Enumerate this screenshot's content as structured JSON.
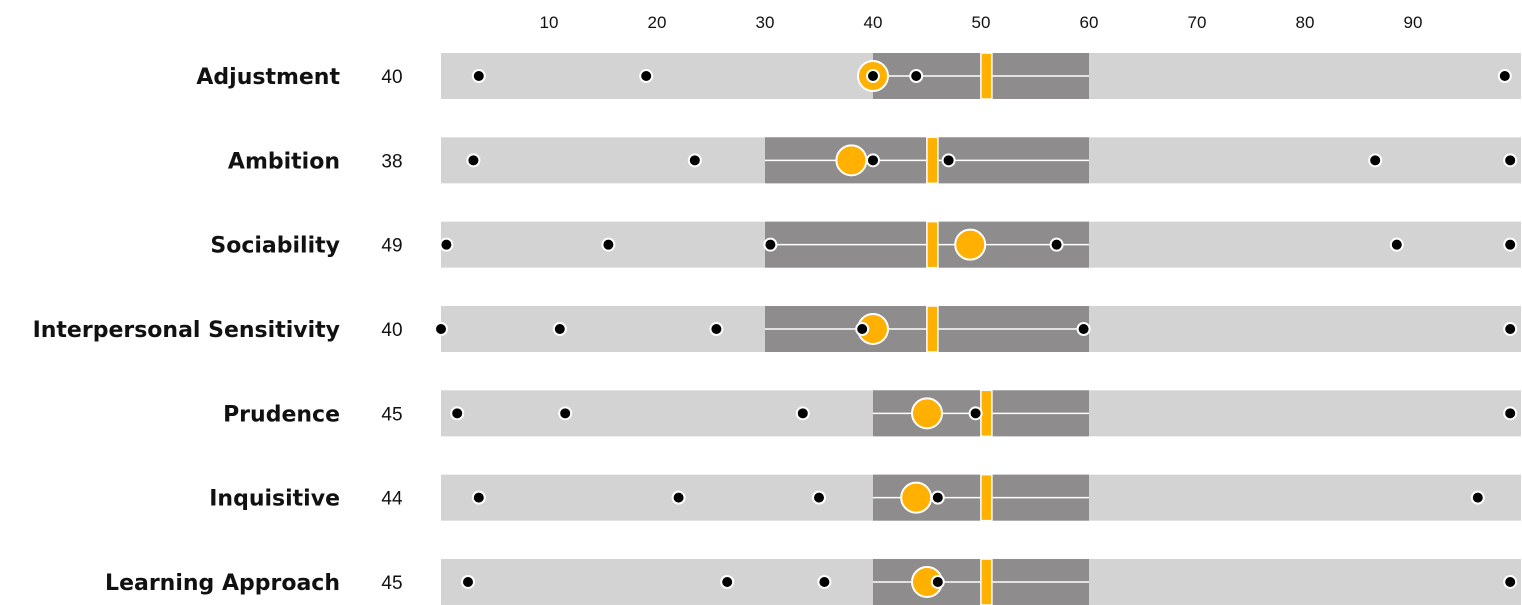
{
  "chart_data": {
    "type": "dot-range",
    "x_axis": {
      "range": [
        0,
        100
      ],
      "ticks": [
        10,
        20,
        30,
        40,
        50,
        60,
        70,
        80,
        90
      ],
      "tick_labels": [
        "10",
        "20",
        "30",
        "40",
        "50",
        "60",
        "70",
        "80",
        "90"
      ]
    },
    "colors": {
      "track": "#d3d3d3",
      "band": "#8e8c8c",
      "marker": "#ffb000",
      "dot": "#000000",
      "dot_outline": "#ffffff"
    },
    "rows": [
      {
        "label": "Adjustment",
        "score": 40,
        "score_label": "40",
        "band": [
          40,
          60
        ],
        "marker": 50.5,
        "dots": [
          3.5,
          19,
          40,
          44,
          98.5
        ]
      },
      {
        "label": "Ambition",
        "score": 38,
        "score_label": "38",
        "band": [
          30,
          60
        ],
        "marker": 45.5,
        "dots": [
          3,
          23.5,
          40,
          47,
          86.5,
          99
        ]
      },
      {
        "label": "Sociability",
        "score": 49,
        "score_label": "49",
        "band": [
          30,
          60
        ],
        "marker": 45.5,
        "dots": [
          0.5,
          15.5,
          30.5,
          57,
          88.5,
          99
        ]
      },
      {
        "label": "Interpersonal Sensitivity",
        "score": 40,
        "score_label": "40",
        "band": [
          30,
          60
        ],
        "marker": 45.5,
        "dots": [
          0,
          11,
          25.5,
          39,
          59.5,
          99
        ]
      },
      {
        "label": "Prudence",
        "score": 45,
        "score_label": "45",
        "band": [
          40,
          60
        ],
        "marker": 50.5,
        "dots": [
          1.5,
          11.5,
          33.5,
          49.5,
          99
        ]
      },
      {
        "label": "Inquisitive",
        "score": 44,
        "score_label": "44",
        "band": [
          40,
          60
        ],
        "marker": 50.5,
        "dots": [
          3.5,
          22,
          35,
          46,
          96
        ]
      },
      {
        "label": "Learning Approach",
        "score": 45,
        "score_label": "45",
        "band": [
          40,
          60
        ],
        "marker": 50.5,
        "dots": [
          2.5,
          26.5,
          35.5,
          46,
          99
        ]
      }
    ]
  }
}
